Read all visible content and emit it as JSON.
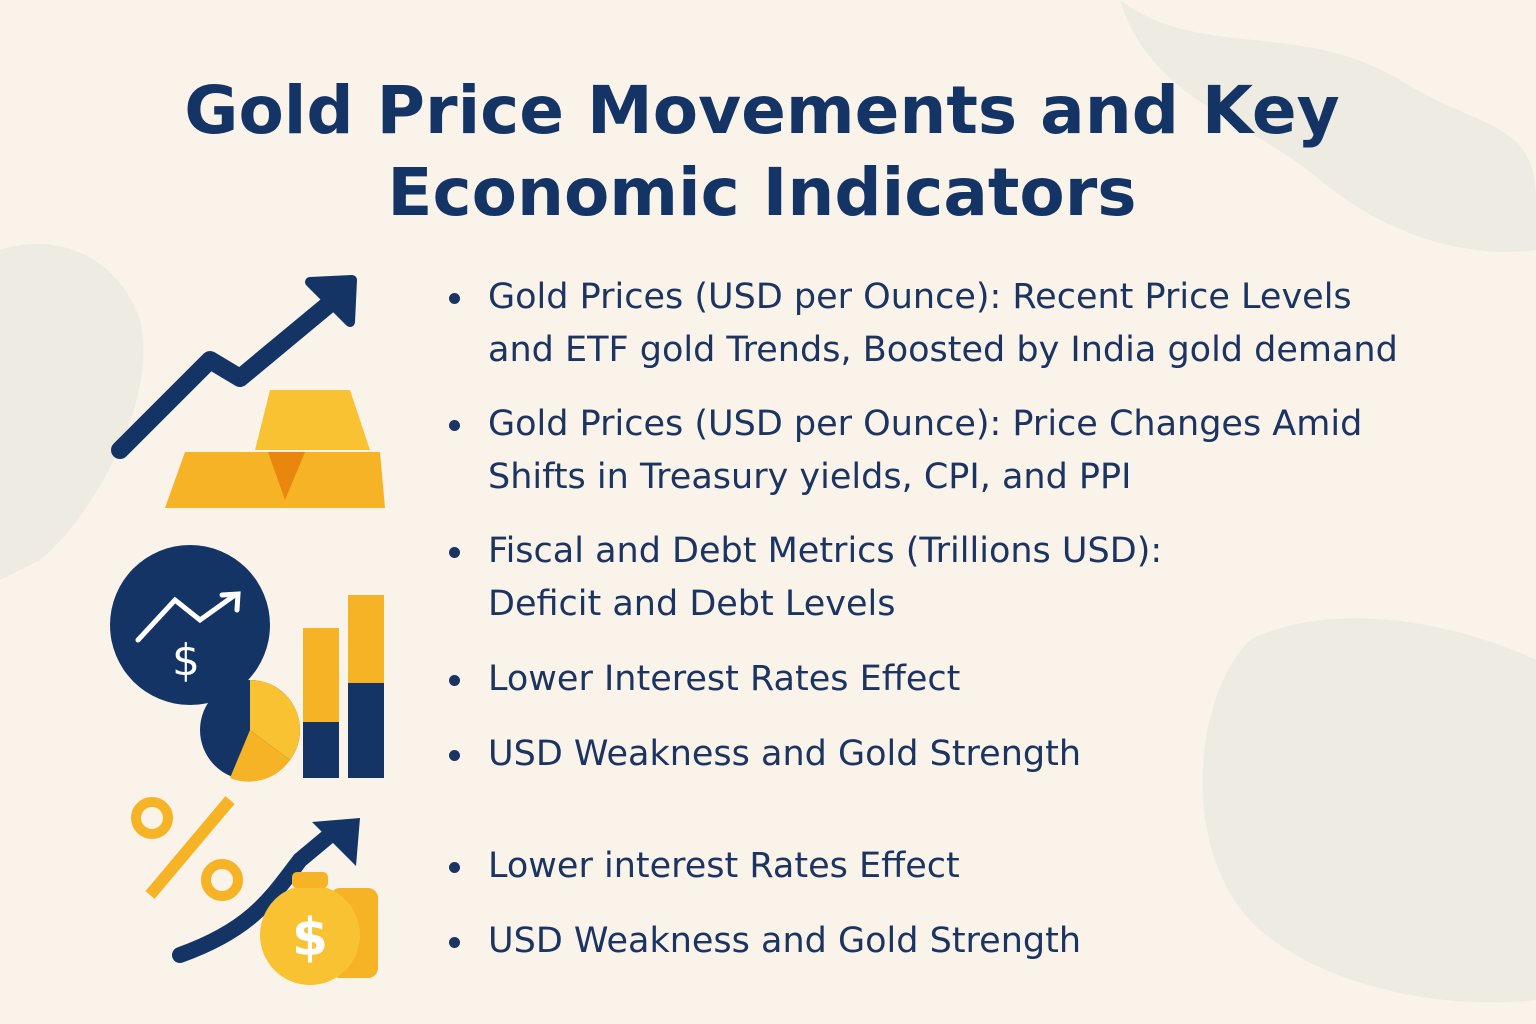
{
  "header": {
    "title_lines": [
      "Gold Price Movements and Key",
      "Economic Indicators"
    ]
  },
  "items": [
    {
      "lines": [
        "Gold Prices (USD per Ounce): Recent Price Levels",
        "and ETF gold Trends, Boosted by India gold demand"
      ]
    },
    {
      "lines": [
        "Gold Prices (USD per Ounce): Price Changes Amid",
        "Shifts in Treasury yields, CPI, and PPI"
      ]
    },
    {
      "lines": [
        "Fiscal and Debt Metrics (Trillions USD):",
        "Deficit and Debt Levels"
      ]
    },
    {
      "lines": [
        "Lower Interest Rates Effect"
      ]
    },
    {
      "lines": [
        "USD Weakness and Gold Strength"
      ]
    },
    {
      "lines": [
        "Lower interest Rates Effect"
      ]
    },
    {
      "lines": [
        "USD Weakness and Gold Strength"
      ]
    }
  ]
}
